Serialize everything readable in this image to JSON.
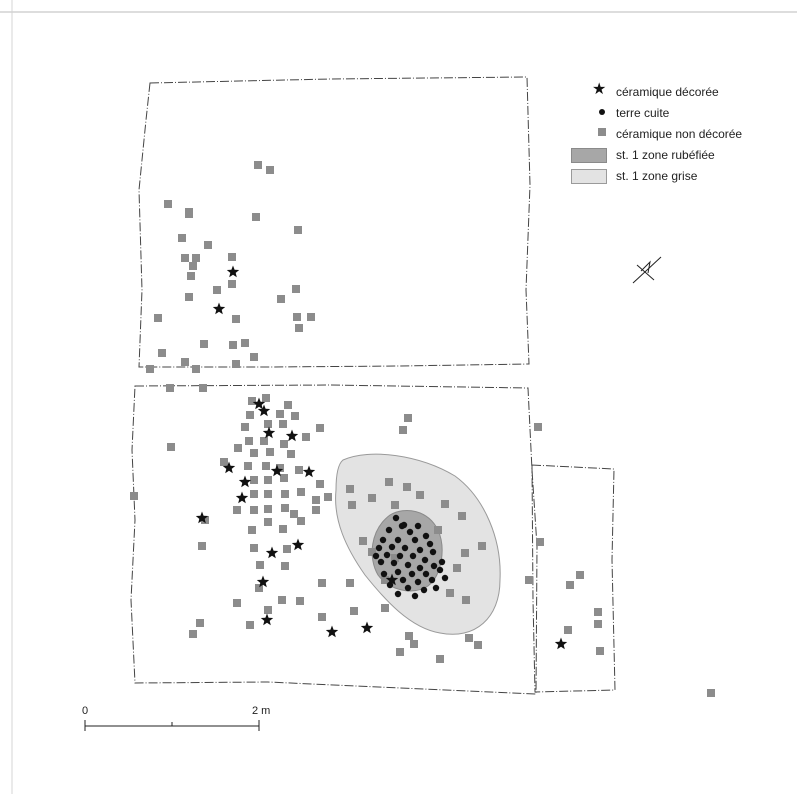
{
  "legend": [
    {
      "symbol": "decorated-ceramic",
      "label": "céramique décorée"
    },
    {
      "symbol": "terracotta",
      "label": "terre cuite"
    },
    {
      "symbol": "undecorated-ceramic",
      "label": "céramique non décorée"
    },
    {
      "symbol": "reddened-zone",
      "label": "st. 1 zone rubéfiée"
    },
    {
      "symbol": "grey-zone",
      "label": "st. 1 zone grise"
    }
  ],
  "scale": {
    "start_label": "0",
    "end_label": "2 m"
  },
  "colors": {
    "undecorated": "#8c8c8c",
    "reddened_zone": "#a7a7a7",
    "grey_zone": "#e3e3e3",
    "dots": "#111111",
    "stars": "#111111",
    "outline": "#444444"
  }
}
